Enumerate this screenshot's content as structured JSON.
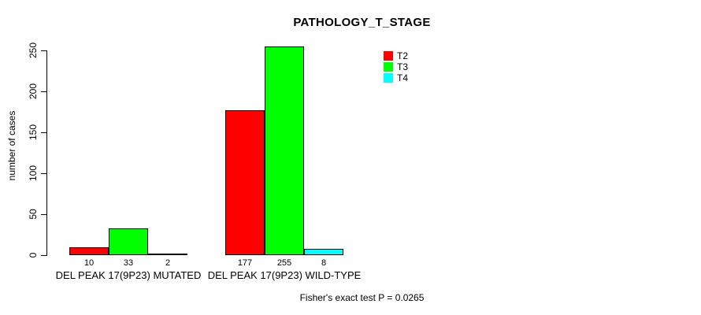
{
  "chart_data": {
    "type": "bar",
    "title": "PATHOLOGY_T_STAGE",
    "ylabel": "number of cases",
    "xlabel": "",
    "categories": [
      "DEL PEAK 17(9P23) MUTATED",
      "DEL PEAK 17(9P23) WILD-TYPE"
    ],
    "series": [
      {
        "name": "T2",
        "color": "#ff0000",
        "values": [
          10,
          177
        ]
      },
      {
        "name": "T3",
        "color": "#00ff00",
        "values": [
          33,
          255
        ]
      },
      {
        "name": "T4",
        "color": "#00ffff",
        "values": [
          2,
          8
        ]
      }
    ],
    "bar_value_labels": [
      [
        "10",
        "33",
        "2"
      ],
      [
        "177",
        "255",
        "8"
      ]
    ],
    "yticks": [
      0,
      50,
      100,
      150,
      200,
      250
    ],
    "ylim": [
      0,
      260
    ],
    "grid": false,
    "legend_position": "top-right",
    "annotation": "Fisher's exact test P = 0.0265"
  },
  "colors": {
    "t2": "#ff0000",
    "t3": "#00ff00",
    "t4": "#00ffff",
    "axis": "#000000",
    "background": "#ffffff"
  }
}
